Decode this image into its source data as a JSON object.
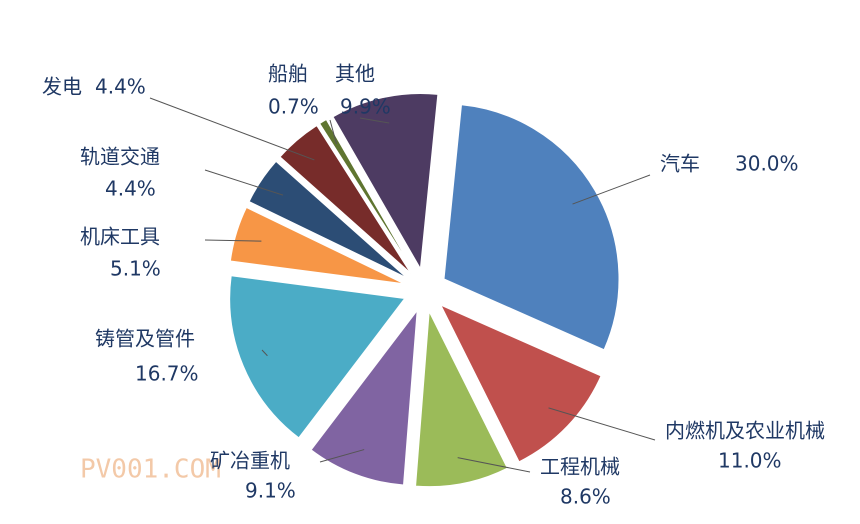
{
  "chart_data": {
    "type": "pie",
    "categories": [
      "汽车",
      "内燃机及农业机械",
      "工程机械",
      "矿冶重机",
      "铸管及管件",
      "机床工具",
      "轨道交通",
      "发电",
      "船舶",
      "其他"
    ],
    "values": [
      30.0,
      11.0,
      8.6,
      9.1,
      16.7,
      5.1,
      4.4,
      4.4,
      0.7,
      9.9
    ],
    "value_labels": [
      "30.0%",
      "11.0%",
      "8.6%",
      "9.1%",
      "16.7%",
      "5.1%",
      "4.4%",
      "4.4%",
      "0.7%",
      "9.9%"
    ],
    "colors": [
      "#4f81bd",
      "#c0504d",
      "#9bbb59",
      "#8064a2",
      "#4bacc6",
      "#f79646",
      "#2c4d75",
      "#772c2a",
      "#5f7530",
      "#4d3b62"
    ],
    "watermark": "PV001.COM"
  }
}
